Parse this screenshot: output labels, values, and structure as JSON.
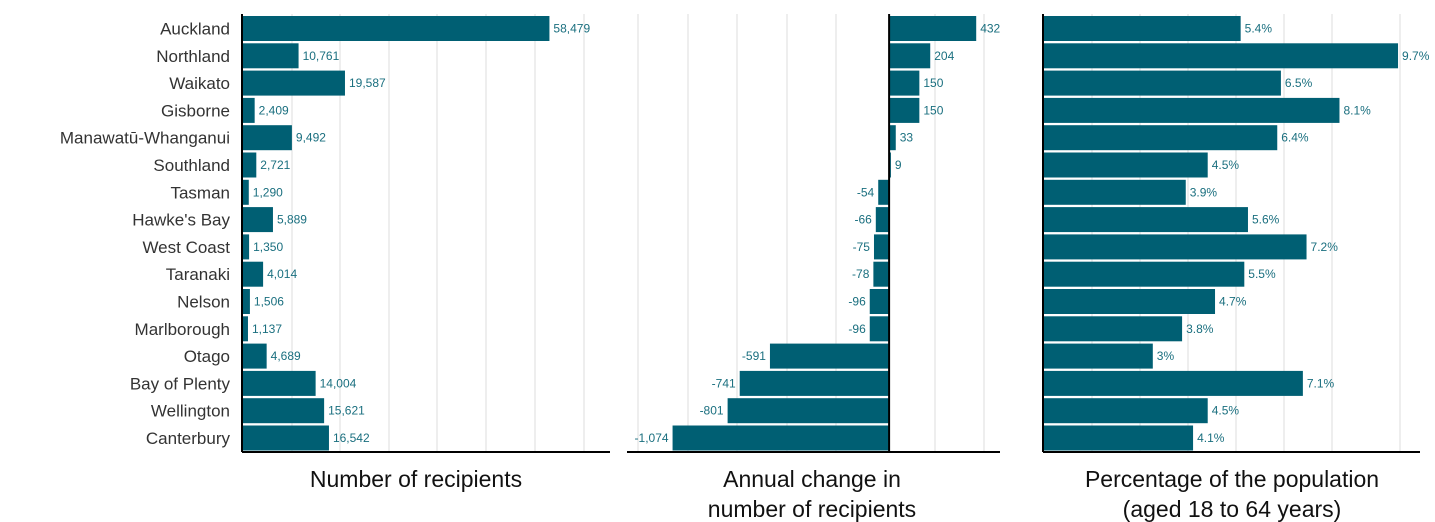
{
  "colors": {
    "bar": "#005f73",
    "grid": "#e3e3e3",
    "axis": "#000000",
    "label": "#1a6f7f"
  },
  "chart_data": {
    "type": "bar",
    "orientation": "horizontal",
    "categories": [
      "Auckland",
      "Northland",
      "Waikato",
      "Gisborne",
      "Manawatū-Whanganui",
      "Southland",
      "Tasman",
      "Hawke's Bay",
      "West Coast",
      "Taranaki",
      "Nelson",
      "Marlborough",
      "Otago",
      "Bay of Plenty",
      "Wellington",
      "Canterbury"
    ],
    "panels": [
      {
        "xlabel": "Number of recipients",
        "values": [
          58479,
          10761,
          19587,
          2409,
          9492,
          2721,
          1290,
          5889,
          1350,
          4014,
          1506,
          1137,
          4689,
          14004,
          15621,
          16542
        ],
        "labels": [
          "58,479",
          "10,761",
          "19,587",
          "2,409",
          "9,492",
          "2,721",
          "1,290",
          "5,889",
          "1,350",
          "4,014",
          "1,506",
          "1,137",
          "4,689",
          "14,004",
          "15,621",
          "16,542"
        ],
        "xlim": [
          0,
          70000
        ],
        "grid": true
      },
      {
        "xlabel": "Annual change in\nnumber of recipients",
        "values": [
          432,
          204,
          150,
          150,
          33,
          9,
          -54,
          -66,
          -75,
          -78,
          -96,
          -96,
          -591,
          -741,
          -801,
          -1074
        ],
        "labels": [
          "432",
          "204",
          "150",
          "150",
          "33",
          "9",
          "-54",
          "-66",
          "-75",
          "-78",
          "-96",
          "-96",
          "-591",
          "-741",
          "-801",
          "-1,074"
        ],
        "xlim": [
          -1300,
          550
        ],
        "grid": true
      },
      {
        "xlabel": "Percentage of the population\n(aged 18 to 64 years)",
        "values": [
          5.4,
          9.7,
          6.5,
          8.1,
          6.4,
          4.5,
          3.9,
          5.6,
          7.2,
          5.5,
          4.7,
          3.8,
          3,
          7.1,
          4.5,
          4.1
        ],
        "labels": [
          "5.4%",
          "9.7%",
          "6.5%",
          "8.1%",
          "6.4%",
          "4.5%",
          "3.9%",
          "5.6%",
          "7.2%",
          "5.5%",
          "4.7%",
          "3.8%",
          "3%",
          "7.1%",
          "4.5%",
          "4.1%"
        ],
        "xlim": [
          0,
          10.3
        ],
        "grid": true
      }
    ]
  }
}
